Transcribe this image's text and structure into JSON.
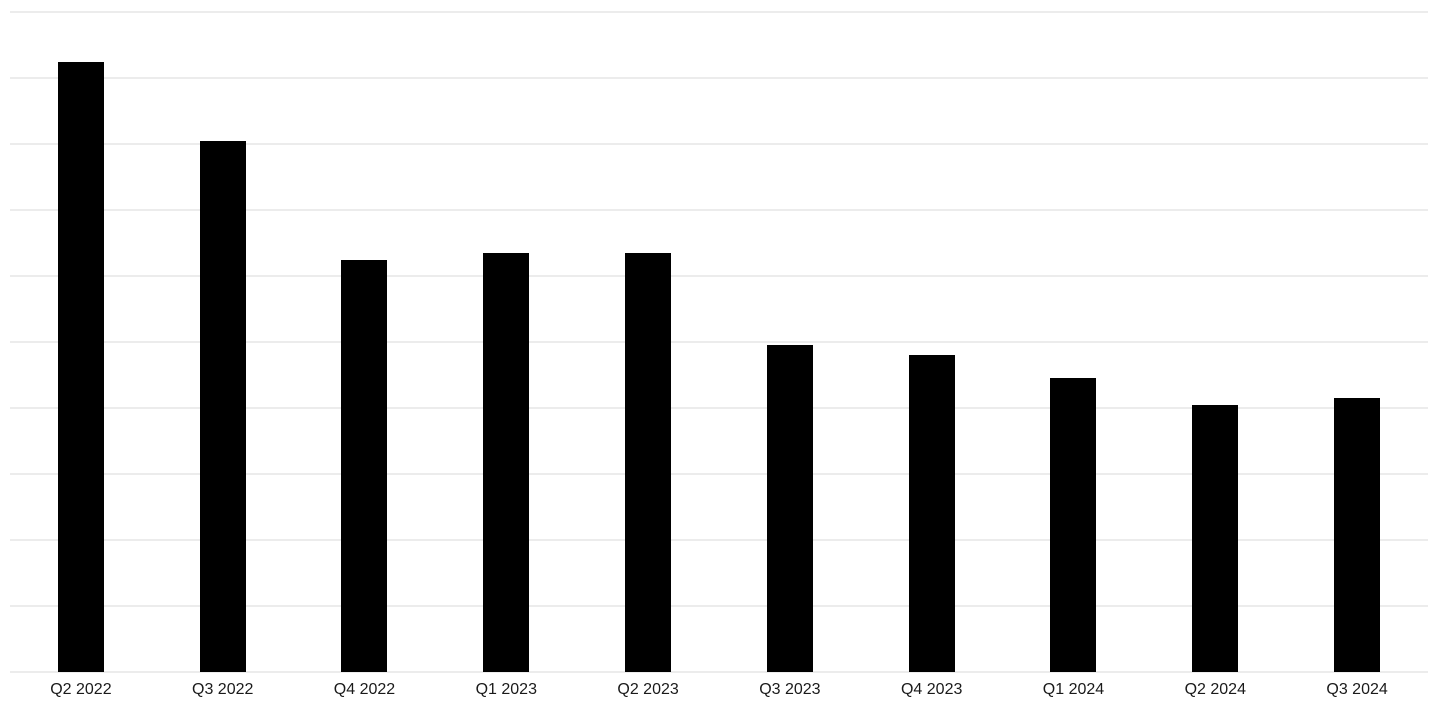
{
  "chart_data": {
    "type": "bar",
    "title": "",
    "xlabel": "",
    "ylabel": "",
    "categories": [
      "Q2 2022",
      "Q3 2022",
      "Q4 2022",
      "Q1 2023",
      "Q2 2023",
      "Q3 2023",
      "Q4 2023",
      "Q1 2024",
      "Q2 2024",
      "Q3 2024"
    ],
    "values": [
      9.25,
      8.05,
      6.25,
      6.35,
      6.35,
      4.95,
      4.8,
      4.45,
      4.05,
      4.15
    ],
    "ylim": [
      0,
      10
    ],
    "y_tick_labels_visible": false,
    "gridline_count": 11,
    "grid": "horizontal",
    "legend": "none",
    "colors": {
      "bar": "#000000",
      "gridline": "#ececec",
      "label": "#1a1a1a",
      "background": "#ffffff"
    }
  }
}
